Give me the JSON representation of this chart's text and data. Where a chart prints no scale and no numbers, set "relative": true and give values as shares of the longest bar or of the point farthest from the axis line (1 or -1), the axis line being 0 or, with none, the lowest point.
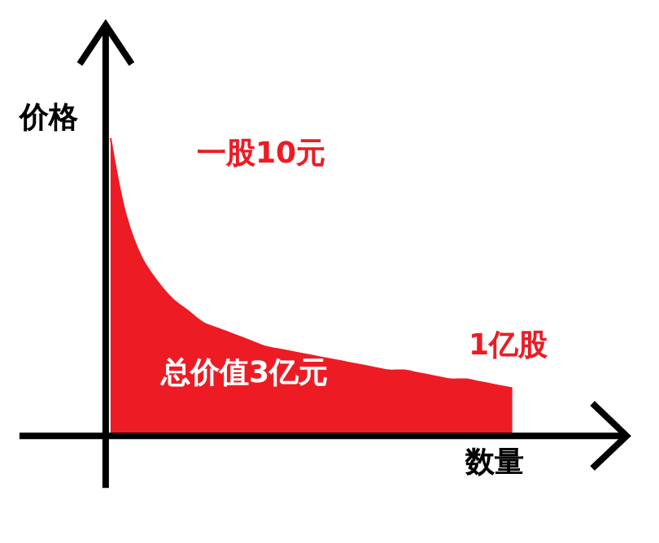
{
  "chart_data": {
    "type": "area",
    "relative": true,
    "xlabel": "数量",
    "ylabel": "价格",
    "categories": [
      null,
      null,
      null,
      null,
      null,
      null,
      null,
      null,
      null,
      null,
      null,
      null,
      null,
      null,
      null,
      null,
      null,
      null,
      null,
      null,
      null,
      null,
      null,
      null,
      null,
      null,
      null
    ],
    "series": [
      {
        "color": "#ed1c24",
        "values": [
          1,
          0.74,
          0.6,
          0.52,
          0.46,
          0.42,
          0.38,
          0.36,
          0.34,
          0.32,
          0.3,
          0.29,
          0.28,
          0.27,
          0.26,
          0.25,
          0.24,
          0.23,
          0.22,
          0.22,
          0.21,
          0.2,
          0.19,
          0.19,
          0.18,
          0.17,
          0.16
        ]
      }
    ],
    "annotations": [
      "一股10元",
      "总价值3亿元",
      "1亿股"
    ],
    "grid": false,
    "legend": false
  }
}
